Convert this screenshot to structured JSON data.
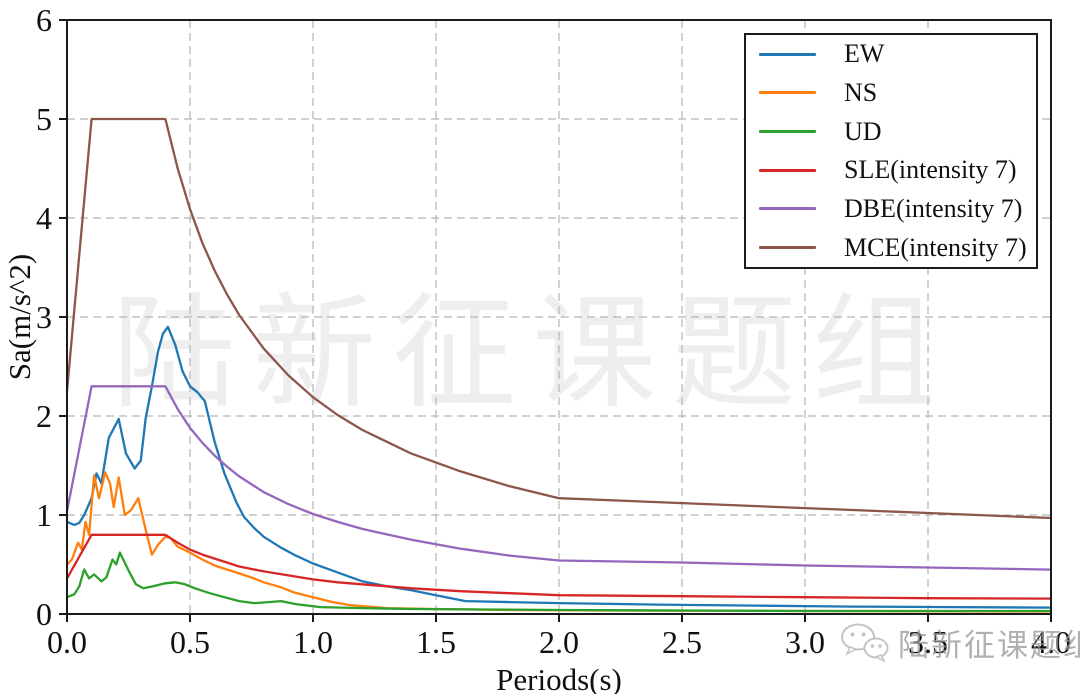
{
  "chart_data": {
    "type": "line",
    "title": "",
    "xlabel": "Periods(s)",
    "ylabel": "Sa(m/s^2)",
    "xlim": [
      0,
      4
    ],
    "ylim": [
      0,
      6
    ],
    "x_tick_values": [
      0,
      0.5,
      1.0,
      1.5,
      2.0,
      2.5,
      3.0,
      3.5,
      4.0
    ],
    "x_tick_labels": [
      "0.0",
      "0.5",
      "1.0",
      "1.5",
      "2.0",
      "2.5",
      "3.0",
      "3.5",
      "4.0"
    ],
    "y_tick_values": [
      0,
      1,
      2,
      3,
      4,
      5,
      6
    ],
    "y_tick_labels": [
      "0",
      "1",
      "2",
      "3",
      "4",
      "5",
      "6"
    ],
    "grid": true,
    "grid_style": "dashed",
    "legend_position": "upper right",
    "series": [
      {
        "name": "EW",
        "color": "#1f77b4",
        "points": [
          [
            0,
            0.93
          ],
          [
            0.03,
            0.9
          ],
          [
            0.05,
            0.92
          ],
          [
            0.07,
            1.0
          ],
          [
            0.1,
            1.17
          ],
          [
            0.12,
            1.42
          ],
          [
            0.14,
            1.32
          ],
          [
            0.17,
            1.78
          ],
          [
            0.21,
            1.97
          ],
          [
            0.24,
            1.62
          ],
          [
            0.275,
            1.47
          ],
          [
            0.3,
            1.55
          ],
          [
            0.32,
            1.98
          ],
          [
            0.345,
            2.3
          ],
          [
            0.37,
            2.65
          ],
          [
            0.39,
            2.83
          ],
          [
            0.41,
            2.9
          ],
          [
            0.44,
            2.72
          ],
          [
            0.47,
            2.45
          ],
          [
            0.5,
            2.3
          ],
          [
            0.53,
            2.24
          ],
          [
            0.56,
            2.15
          ],
          [
            0.6,
            1.74
          ],
          [
            0.64,
            1.42
          ],
          [
            0.69,
            1.12
          ],
          [
            0.72,
            0.98
          ],
          [
            0.76,
            0.87
          ],
          [
            0.8,
            0.78
          ],
          [
            0.87,
            0.67
          ],
          [
            0.93,
            0.59
          ],
          [
            1,
            0.51
          ],
          [
            1.1,
            0.42
          ],
          [
            1.2,
            0.33
          ],
          [
            1.3,
            0.28
          ],
          [
            1.4,
            0.24
          ],
          [
            1.5,
            0.19
          ],
          [
            1.62,
            0.13
          ],
          [
            1.8,
            0.12
          ],
          [
            2,
            0.11
          ],
          [
            2.4,
            0.095
          ],
          [
            2.8,
            0.085
          ],
          [
            3.2,
            0.075
          ],
          [
            3.6,
            0.07
          ],
          [
            4,
            0.065
          ]
        ]
      },
      {
        "name": "NS",
        "color": "#ff7f0e",
        "points": [
          [
            0,
            0.5
          ],
          [
            0.02,
            0.55
          ],
          [
            0.045,
            0.72
          ],
          [
            0.06,
            0.65
          ],
          [
            0.075,
            0.93
          ],
          [
            0.09,
            0.8
          ],
          [
            0.11,
            1.4
          ],
          [
            0.13,
            1.17
          ],
          [
            0.155,
            1.43
          ],
          [
            0.175,
            1.32
          ],
          [
            0.19,
            1.08
          ],
          [
            0.21,
            1.38
          ],
          [
            0.235,
            1.0
          ],
          [
            0.26,
            1.05
          ],
          [
            0.29,
            1.17
          ],
          [
            0.32,
            0.85
          ],
          [
            0.345,
            0.6
          ],
          [
            0.37,
            0.7
          ],
          [
            0.4,
            0.78
          ],
          [
            0.42,
            0.77
          ],
          [
            0.45,
            0.68
          ],
          [
            0.5,
            0.62
          ],
          [
            0.55,
            0.55
          ],
          [
            0.6,
            0.49
          ],
          [
            0.65,
            0.45
          ],
          [
            0.7,
            0.41
          ],
          [
            0.76,
            0.36
          ],
          [
            0.8,
            0.32
          ],
          [
            0.87,
            0.27
          ],
          [
            0.92,
            0.22
          ],
          [
            1,
            0.17
          ],
          [
            1.08,
            0.12
          ],
          [
            1.15,
            0.09
          ],
          [
            1.3,
            0.06
          ],
          [
            1.5,
            0.05
          ],
          [
            1.8,
            0.04
          ],
          [
            2.2,
            0.035
          ],
          [
            3,
            0.03
          ],
          [
            4,
            0.025
          ]
        ]
      },
      {
        "name": "UD",
        "color": "#2ca02c",
        "points": [
          [
            0,
            0.17
          ],
          [
            0.03,
            0.2
          ],
          [
            0.05,
            0.28
          ],
          [
            0.07,
            0.45
          ],
          [
            0.09,
            0.36
          ],
          [
            0.11,
            0.4
          ],
          [
            0.14,
            0.33
          ],
          [
            0.16,
            0.37
          ],
          [
            0.185,
            0.55
          ],
          [
            0.2,
            0.5
          ],
          [
            0.215,
            0.62
          ],
          [
            0.25,
            0.44
          ],
          [
            0.28,
            0.3
          ],
          [
            0.31,
            0.26
          ],
          [
            0.35,
            0.28
          ],
          [
            0.4,
            0.31
          ],
          [
            0.44,
            0.32
          ],
          [
            0.48,
            0.3
          ],
          [
            0.52,
            0.26
          ],
          [
            0.58,
            0.21
          ],
          [
            0.64,
            0.17
          ],
          [
            0.7,
            0.13
          ],
          [
            0.76,
            0.11
          ],
          [
            0.82,
            0.12
          ],
          [
            0.87,
            0.13
          ],
          [
            0.93,
            0.1
          ],
          [
            1.03,
            0.07
          ],
          [
            1.2,
            0.06
          ],
          [
            1.4,
            0.05
          ],
          [
            1.7,
            0.045
          ],
          [
            2,
            0.04
          ],
          [
            2.5,
            0.035
          ],
          [
            3,
            0.03
          ],
          [
            4,
            0.03
          ]
        ]
      },
      {
        "name": "SLE(intensity 7)",
        "color": "#d62728",
        "points": [
          [
            0,
            0.36
          ],
          [
            0.05,
            0.58
          ],
          [
            0.1,
            0.8
          ],
          [
            0.4,
            0.8
          ],
          [
            0.45,
            0.72
          ],
          [
            0.5,
            0.65
          ],
          [
            0.55,
            0.6
          ],
          [
            0.6,
            0.56
          ],
          [
            0.65,
            0.52
          ],
          [
            0.7,
            0.48
          ],
          [
            0.8,
            0.43
          ],
          [
            0.9,
            0.39
          ],
          [
            1,
            0.35
          ],
          [
            1.1,
            0.32
          ],
          [
            1.2,
            0.3
          ],
          [
            1.4,
            0.26
          ],
          [
            1.6,
            0.23
          ],
          [
            1.8,
            0.21
          ],
          [
            2,
            0.19
          ],
          [
            2.5,
            0.18
          ],
          [
            3,
            0.17
          ],
          [
            3.5,
            0.16
          ],
          [
            4,
            0.156
          ]
        ]
      },
      {
        "name": "DBE(intensity 7)",
        "color": "#9467bd",
        "points": [
          [
            0,
            1.04
          ],
          [
            0.05,
            1.67
          ],
          [
            0.1,
            2.3
          ],
          [
            0.4,
            2.3
          ],
          [
            0.45,
            2.07
          ],
          [
            0.5,
            1.88
          ],
          [
            0.55,
            1.73
          ],
          [
            0.6,
            1.6
          ],
          [
            0.65,
            1.49
          ],
          [
            0.7,
            1.39
          ],
          [
            0.8,
            1.23
          ],
          [
            0.9,
            1.11
          ],
          [
            1,
            1.01
          ],
          [
            1.1,
            0.93
          ],
          [
            1.2,
            0.86
          ],
          [
            1.4,
            0.75
          ],
          [
            1.6,
            0.66
          ],
          [
            1.8,
            0.59
          ],
          [
            2,
            0.54
          ],
          [
            2.5,
            0.52
          ],
          [
            3,
            0.49
          ],
          [
            3.5,
            0.47
          ],
          [
            4,
            0.448
          ]
        ]
      },
      {
        "name": "MCE(intensity 7)",
        "color": "#8c564b",
        "points": [
          [
            0,
            2.25
          ],
          [
            0.05,
            3.63
          ],
          [
            0.1,
            5.0
          ],
          [
            0.4,
            5.0
          ],
          [
            0.45,
            4.5
          ],
          [
            0.5,
            4.09
          ],
          [
            0.55,
            3.75
          ],
          [
            0.6,
            3.47
          ],
          [
            0.65,
            3.23
          ],
          [
            0.7,
            3.02
          ],
          [
            0.8,
            2.68
          ],
          [
            0.9,
            2.41
          ],
          [
            1,
            2.19
          ],
          [
            1.1,
            2.01
          ],
          [
            1.2,
            1.86
          ],
          [
            1.4,
            1.62
          ],
          [
            1.6,
            1.44
          ],
          [
            1.8,
            1.29
          ],
          [
            2,
            1.17
          ],
          [
            2.5,
            1.12
          ],
          [
            3,
            1.07
          ],
          [
            3.5,
            1.02
          ],
          [
            4,
            0.97
          ]
        ]
      }
    ]
  },
  "watermark": {
    "center_text": "陆新征课题组",
    "badge_text": "陆新征课题组"
  },
  "style": {
    "axis_color": "#1a1a1a",
    "grid_color": "#b5b5b5",
    "tick_label_color": "#111111",
    "background": "#ffffff"
  }
}
